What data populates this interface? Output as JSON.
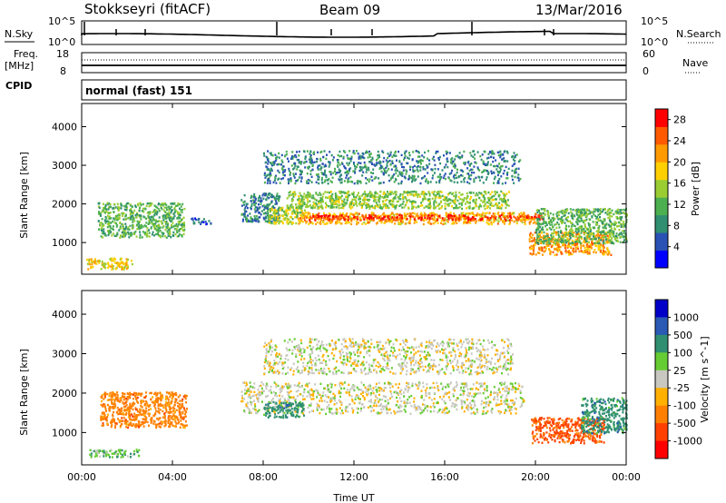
{
  "header": {
    "station": "Stokkseyri (fitACF)",
    "beam": "Beam 09",
    "date": "13/Mar/2016"
  },
  "strip_panels": {
    "nsky_label": "N.Sky",
    "nsky_ticks": [
      "10^5",
      "10^0"
    ],
    "nsearch_label": "N.Search",
    "nsearch_ticks": [
      "10^5",
      "10^0"
    ],
    "freq_label": "Freq.",
    "freq_unit": "[MHz]",
    "freq_ticks": [
      "18",
      "8"
    ],
    "nave_label": "Nave",
    "nave_ticks": [
      "60",
      "0"
    ],
    "cpid_label": "CPID",
    "cpid_value": "normal (fast) 151"
  },
  "colors": {
    "power_scale": [
      "#0000ff",
      "#2a52b4",
      "#2f8f70",
      "#4caf50",
      "#9acd32",
      "#ffd000",
      "#ff9a00",
      "#ff5a00",
      "#ff0000"
    ],
    "velocity_scale": [
      "#0000c8",
      "#2a5ab4",
      "#2f8f70",
      "#66cc33",
      "#c8c8c0",
      "#ffb000",
      "#ff8000",
      "#ff4000",
      "#ff0000"
    ]
  },
  "chart_data": [
    {
      "type": "heatmap",
      "name": "power-panel",
      "xlabel": "Time UT",
      "ylabel": "Slant Range [km]",
      "x_ticks": [
        "00:00",
        "04:00",
        "08:00",
        "12:00",
        "16:00",
        "20:00",
        "00:00"
      ],
      "xlim_hours": [
        0,
        24
      ],
      "y_ticks": [
        1000,
        2000,
        3000,
        4000
      ],
      "ylim": [
        180,
        4600
      ],
      "colorbar": {
        "label": "Power [dB]",
        "ticks": [
          4,
          8,
          12,
          16,
          20,
          24,
          28
        ],
        "range": [
          0,
          30
        ]
      },
      "regions": [
        {
          "t0": 0.7,
          "t1": 4.5,
          "r0": 1150,
          "r1": 2050,
          "value": 12
        },
        {
          "t0": 0.2,
          "t1": 2.2,
          "r0": 330,
          "r1": 620,
          "value": 18
        },
        {
          "t0": 4.8,
          "t1": 5.7,
          "r0": 1500,
          "r1": 1650,
          "value": 6
        },
        {
          "t0": 7.0,
          "t1": 8.7,
          "r0": 1550,
          "r1": 2300,
          "value": 8
        },
        {
          "t0": 8.2,
          "t1": 9.8,
          "r0": 1500,
          "r1": 1950,
          "value": 16
        },
        {
          "t0": 9.5,
          "t1": 20.0,
          "r0": 1500,
          "r1": 1800,
          "value": 20
        },
        {
          "t0": 10.0,
          "t1": 20.3,
          "r0": 1600,
          "r1": 1740,
          "value": 27
        },
        {
          "t0": 9.0,
          "t1": 18.8,
          "r0": 1900,
          "r1": 2350,
          "value": 14
        },
        {
          "t0": 8.0,
          "t1": 19.3,
          "r0": 2550,
          "r1": 3400,
          "value": 8
        },
        {
          "t0": 19.7,
          "t1": 23.3,
          "r0": 700,
          "r1": 1300,
          "value": 22
        },
        {
          "t0": 20.0,
          "t1": 24.0,
          "r0": 1000,
          "r1": 1900,
          "value": 12
        }
      ]
    },
    {
      "type": "heatmap",
      "name": "velocity-panel",
      "xlabel": "Time UT",
      "ylabel": "Slant Range [km]",
      "x_ticks": [
        "00:00",
        "04:00",
        "08:00",
        "12:00",
        "16:00",
        "20:00",
        "00:00"
      ],
      "xlim_hours": [
        0,
        24
      ],
      "y_ticks": [
        1000,
        2000,
        3000,
        4000
      ],
      "ylim": [
        180,
        4600
      ],
      "colorbar": {
        "label": "Velocity [m s^-1]",
        "ticks": [
          1000,
          500,
          100,
          25,
          -25,
          -100,
          -500,
          -1000
        ]
      },
      "regions": [
        {
          "t0": 0.8,
          "t1": 4.6,
          "r0": 1150,
          "r1": 2050,
          "value": -300
        },
        {
          "t0": 0.3,
          "t1": 2.5,
          "r0": 400,
          "r1": 600,
          "value": 150
        },
        {
          "t0": 7.0,
          "t1": 19.5,
          "r0": 1500,
          "r1": 2300,
          "value": 0
        },
        {
          "t0": 8.0,
          "t1": 19.0,
          "r0": 2500,
          "r1": 3400,
          "value": 0
        },
        {
          "t0": 8.0,
          "t1": 9.8,
          "r0": 1400,
          "r1": 1800,
          "value": 300
        },
        {
          "t0": 19.8,
          "t1": 23.0,
          "r0": 750,
          "r1": 1400,
          "value": -450
        },
        {
          "t0": 22.0,
          "t1": 24.0,
          "r0": 1000,
          "r1": 1900,
          "value": 300
        }
      ]
    }
  ]
}
